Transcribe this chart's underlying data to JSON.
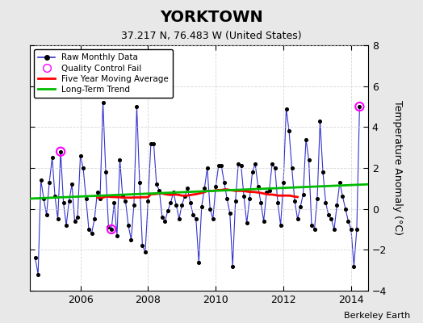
{
  "title": "YORKTOWN",
  "subtitle": "37.217 N, 76.483 W (United States)",
  "ylabel": "Temperature Anomaly (°C)",
  "credit": "Berkeley Earth",
  "ylim": [
    -4,
    8
  ],
  "yticks": [
    -4,
    -2,
    0,
    2,
    4,
    6,
    8
  ],
  "xlim": [
    2004.5,
    2014.5
  ],
  "xticks": [
    2006,
    2008,
    2010,
    2012,
    2014
  ],
  "bg_color": "#e8e8e8",
  "plot_bg_color": "#ffffff",
  "raw_color": "#3333cc",
  "raw_dot_color": "#000000",
  "qc_fail_color": "#ff00ff",
  "moving_avg_color": "#ff0000",
  "trend_color": "#00bb00",
  "raw_data_x": [
    2004.667,
    2004.75,
    2004.833,
    2004.917,
    2005.0,
    2005.083,
    2005.167,
    2005.25,
    2005.333,
    2005.417,
    2005.5,
    2005.583,
    2005.667,
    2005.75,
    2005.833,
    2005.917,
    2006.0,
    2006.083,
    2006.167,
    2006.25,
    2006.333,
    2006.417,
    2006.5,
    2006.583,
    2006.667,
    2006.75,
    2006.833,
    2006.917,
    2007.0,
    2007.083,
    2007.167,
    2007.25,
    2007.333,
    2007.417,
    2007.5,
    2007.583,
    2007.667,
    2007.75,
    2007.833,
    2007.917,
    2008.0,
    2008.083,
    2008.167,
    2008.25,
    2008.333,
    2008.417,
    2008.5,
    2008.583,
    2008.667,
    2008.75,
    2008.833,
    2008.917,
    2009.0,
    2009.083,
    2009.167,
    2009.25,
    2009.333,
    2009.417,
    2009.5,
    2009.583,
    2009.667,
    2009.75,
    2009.833,
    2009.917,
    2010.0,
    2010.083,
    2010.167,
    2010.25,
    2010.333,
    2010.417,
    2010.5,
    2010.583,
    2010.667,
    2010.75,
    2010.833,
    2010.917,
    2011.0,
    2011.083,
    2011.167,
    2011.25,
    2011.333,
    2011.417,
    2011.5,
    2011.583,
    2011.667,
    2011.75,
    2011.833,
    2011.917,
    2012.0,
    2012.083,
    2012.167,
    2012.25,
    2012.333,
    2012.417,
    2012.5,
    2012.583,
    2012.667,
    2012.75,
    2012.833,
    2012.917,
    2013.0,
    2013.083,
    2013.167,
    2013.25,
    2013.333,
    2013.417,
    2013.5,
    2013.583,
    2013.667,
    2013.75,
    2013.833,
    2013.917,
    2014.0,
    2014.083,
    2014.167,
    2014.25
  ],
  "raw_data_y": [
    -2.4,
    -3.2,
    1.4,
    0.5,
    -0.3,
    1.3,
    2.5,
    0.6,
    -0.5,
    2.8,
    0.3,
    -0.8,
    0.4,
    1.2,
    -0.6,
    -0.4,
    2.6,
    2.0,
    0.5,
    -1.0,
    -1.2,
    -0.5,
    0.8,
    0.5,
    5.2,
    1.8,
    -0.9,
    -1.0,
    0.3,
    -1.3,
    2.4,
    0.6,
    0.4,
    -0.8,
    -1.5,
    0.2,
    5.0,
    1.3,
    -1.8,
    -2.1,
    0.4,
    3.2,
    3.2,
    1.2,
    0.9,
    -0.4,
    -0.6,
    -0.1,
    0.3,
    0.8,
    0.2,
    -0.5,
    0.2,
    0.6,
    1.0,
    0.3,
    -0.3,
    -0.5,
    -2.6,
    0.1,
    1.0,
    2.0,
    0.0,
    -0.5,
    1.1,
    2.1,
    2.1,
    1.3,
    0.5,
    -0.2,
    -2.8,
    0.4,
    2.2,
    2.1,
    0.6,
    -0.7,
    0.5,
    1.8,
    2.2,
    1.1,
    0.3,
    -0.6,
    0.8,
    0.9,
    2.2,
    2.0,
    0.3,
    -0.8,
    1.3,
    4.9,
    3.8,
    2.0,
    0.4,
    -0.5,
    0.1,
    0.7,
    3.4,
    2.4,
    -0.8,
    -1.0,
    0.5,
    4.3,
    1.8,
    0.3,
    -0.3,
    -0.5,
    -1.0,
    0.2,
    1.3,
    0.6,
    0.0,
    -0.6,
    -1.0,
    -2.8,
    -1.0,
    5.0
  ],
  "qc_fail_points_x": [
    2005.417,
    2006.917,
    2014.25
  ],
  "qc_fail_points_y": [
    2.8,
    -1.0,
    5.0
  ],
  "moving_avg_x": [
    2006.5,
    2006.583,
    2006.667,
    2006.75,
    2006.833,
    2006.917,
    2007.0,
    2007.083,
    2007.167,
    2007.25,
    2007.333,
    2007.417,
    2007.5,
    2007.583,
    2007.667,
    2007.75,
    2007.833,
    2007.917,
    2008.0,
    2008.083,
    2008.167,
    2008.25,
    2008.333,
    2008.417,
    2008.5,
    2008.583,
    2008.667,
    2008.75,
    2008.833,
    2008.917,
    2009.0,
    2009.083,
    2009.167,
    2009.25,
    2009.333,
    2009.417,
    2009.5,
    2009.583,
    2009.667,
    2009.75,
    2009.833,
    2009.917,
    2010.0,
    2010.083,
    2010.167,
    2010.25,
    2010.333,
    2010.417,
    2010.5,
    2010.583,
    2010.667,
    2010.75,
    2010.833,
    2010.917,
    2011.0,
    2011.083,
    2011.167,
    2011.25,
    2011.333,
    2011.417,
    2011.5,
    2011.583,
    2011.667,
    2011.75,
    2011.833,
    2011.917,
    2012.0,
    2012.083,
    2012.167,
    2012.25,
    2012.333,
    2012.417
  ],
  "moving_avg_y": [
    0.55,
    0.55,
    0.55,
    0.6,
    0.6,
    0.58,
    0.58,
    0.57,
    0.57,
    0.55,
    0.55,
    0.55,
    0.55,
    0.56,
    0.56,
    0.56,
    0.57,
    0.57,
    0.57,
    0.72,
    0.72,
    0.73,
    0.75,
    0.75,
    0.72,
    0.7,
    0.68,
    0.7,
    0.7,
    0.68,
    0.65,
    0.65,
    0.65,
    0.68,
    0.7,
    0.72,
    0.75,
    0.78,
    0.82,
    0.88,
    0.88,
    0.88,
    0.9,
    0.92,
    0.92,
    0.95,
    0.95,
    0.92,
    0.9,
    0.88,
    0.88,
    0.88,
    0.87,
    0.85,
    0.83,
    0.83,
    0.82,
    0.8,
    0.78,
    0.75,
    0.72,
    0.7,
    0.7,
    0.68,
    0.65,
    0.65,
    0.65,
    0.65,
    0.65,
    0.63,
    0.6,
    0.58
  ],
  "trend_x": [
    2004.5,
    2014.5
  ],
  "trend_y": [
    0.5,
    1.2
  ],
  "legend_labels": [
    "Raw Monthly Data",
    "Quality Control Fail",
    "Five Year Moving Average",
    "Long-Term Trend"
  ],
  "title_fontsize": 14,
  "subtitle_fontsize": 9,
  "tick_fontsize": 9,
  "ylabel_fontsize": 9,
  "legend_fontsize": 7.5,
  "credit_fontsize": 8
}
